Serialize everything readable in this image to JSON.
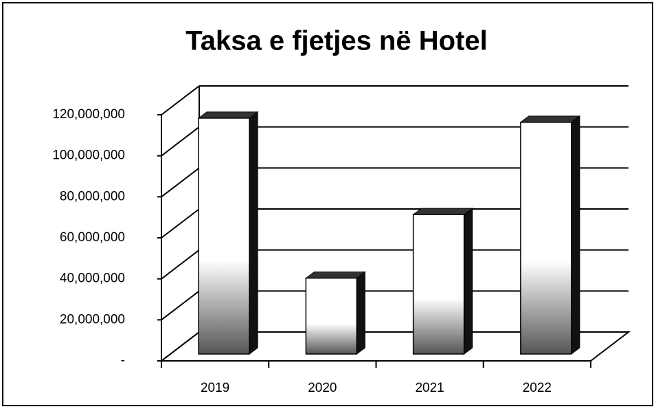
{
  "chart_data": {
    "type": "bar3d",
    "title": "Taksa e fjetjes në Hotel",
    "categories": [
      "2019",
      "2020",
      "2021",
      "2022"
    ],
    "values": [
      115000000,
      37000000,
      68000000,
      113000000
    ],
    "color": "#ffffff",
    "side_color": "#111111",
    "ylim": [
      0,
      120000000
    ],
    "yticks": [
      {
        "value": 0,
        "label": "-"
      },
      {
        "value": 20000000,
        "label": "20,000,000"
      },
      {
        "value": 40000000,
        "label": "40,000,000"
      },
      {
        "value": 60000000,
        "label": "60,000,000"
      },
      {
        "value": 80000000,
        "label": "80,000,000"
      },
      {
        "value": 100000000,
        "label": "100,000,000"
      },
      {
        "value": 120000000,
        "label": "120,000,000"
      }
    ],
    "grid": true
  }
}
